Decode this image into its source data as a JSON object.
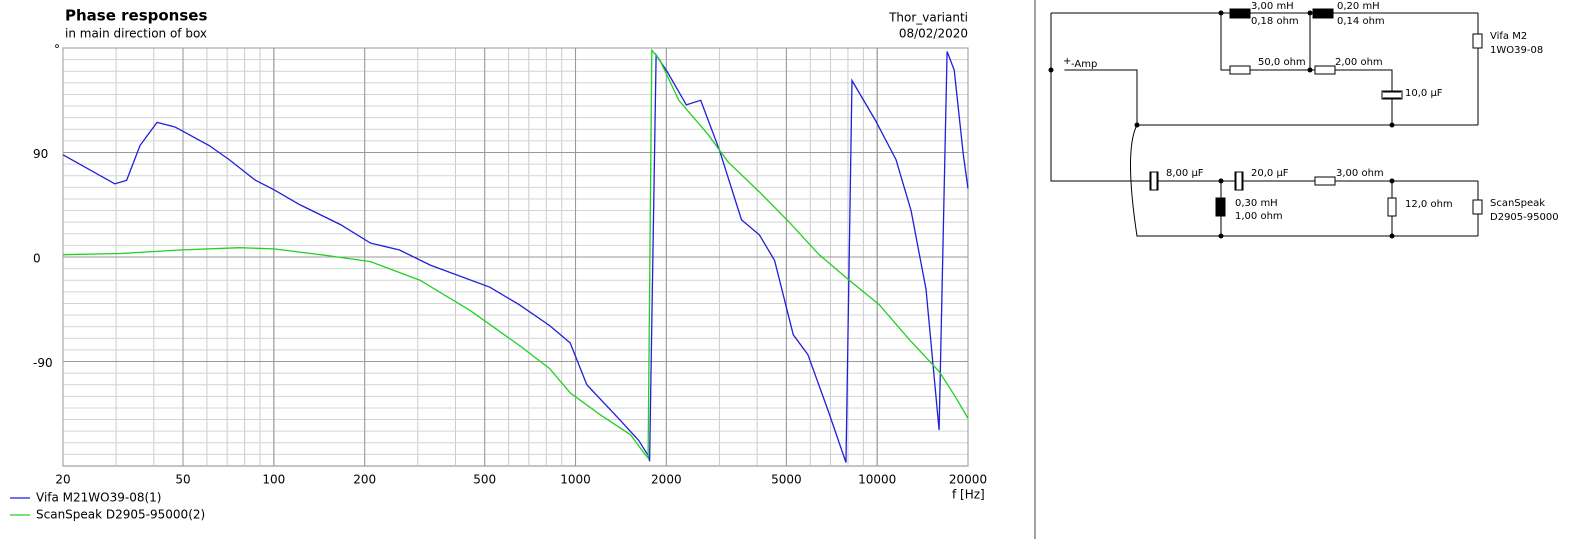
{
  "chart_data": {
    "type": "line",
    "title": "Phase responses",
    "subtitle": "in main direction of box",
    "project": "Thor_varianti",
    "date": "08/02/2020",
    "x_label": "f [Hz]",
    "xlog": true,
    "grid": true,
    "xlim": [
      20,
      20000
    ],
    "xticks": [
      20,
      50,
      100,
      200,
      500,
      1000,
      2000,
      5000,
      10000,
      20000
    ],
    "xgrid": [
      20,
      30,
      40,
      50,
      60,
      70,
      80,
      90,
      100,
      200,
      300,
      400,
      500,
      600,
      700,
      800,
      900,
      1000,
      2000,
      3000,
      4000,
      5000,
      6000,
      7000,
      8000,
      9000,
      10000,
      20000
    ],
    "ylim": [
      -180,
      180
    ],
    "yticks": [
      {
        "value": 180,
        "label": "°"
      },
      90,
      0,
      -90
    ],
    "ygrid": [
      -170,
      -160,
      -150,
      -140,
      -130,
      -120,
      -110,
      -100,
      -90,
      -80,
      -70,
      -60,
      -50,
      -40,
      -30,
      -20,
      -10,
      0,
      10,
      20,
      30,
      40,
      50,
      60,
      70,
      80,
      90,
      100,
      110,
      120,
      130,
      140,
      150,
      160,
      170
    ],
    "series": [
      {
        "name": "Vifa M21WO39-08(1)",
        "color": "#1f1fdc",
        "x": [
          20,
          29.7,
          32.5,
          36,
          41,
          47,
          61,
          71,
          87,
          100,
          122,
          166,
          209,
          261,
          330,
          520,
          650,
          820,
          960,
          1090,
          1400,
          1620,
          1750,
          1760,
          1850,
          2020,
          2330,
          2600,
          3000,
          3550,
          4070,
          4570,
          5270,
          5890,
          6870,
          7880,
          8250,
          9850,
          11540,
          12950,
          14520,
          16040,
          17050,
          18000,
          19300,
          20000
        ],
        "values": [
          88,
          63,
          66,
          96,
          116,
          112,
          96,
          84,
          66,
          58,
          45,
          28,
          12,
          6,
          -7,
          -26,
          -41,
          -59,
          -74,
          -110,
          -140,
          -158,
          -172,
          -176,
          174,
          159,
          131,
          135,
          92,
          32,
          19,
          -3,
          -67,
          -84,
          -132,
          -177,
          152,
          118,
          84,
          40,
          -28,
          -149,
          177,
          161,
          88,
          59
        ]
      },
      {
        "name": "ScanSpeak D2905-95000(2)",
        "color": "#22d022",
        "x": [
          20,
          31,
          48.8,
          77,
          100,
          153,
          209,
          305,
          447,
          650,
          820,
          960,
          1210,
          1520,
          1700,
          1740,
          1790,
          1900,
          2200,
          2760,
          3200,
          4070,
          5110,
          6420,
          8080,
          10150,
          12770,
          16080,
          18030,
          20000
        ],
        "values": [
          2,
          3,
          6,
          8,
          7,
          1,
          -4,
          -20,
          -46,
          -76,
          -96,
          -117,
          -136,
          -153,
          -170,
          -173,
          178,
          170,
          135,
          105,
          82,
          56,
          30,
          2,
          -20,
          -41,
          -71,
          -99,
          -119,
          -139
        ]
      }
    ]
  },
  "schematic": {
    "labels": [
      "3,00 mH",
      "0,18 ohm",
      "0,20 mH",
      "0,14 ohm",
      "50,0 ohm",
      "2,00 ohm",
      "10,0 µF",
      "Vifa M2",
      "1WO39-08",
      "+",
      "-Amp",
      "8,00 µF",
      "20,0 µF",
      "3,00 ohm",
      "0,30 mH",
      "1,00 ohm",
      "12,0 ohm",
      "ScanSpeak",
      "D2905-95000"
    ]
  }
}
